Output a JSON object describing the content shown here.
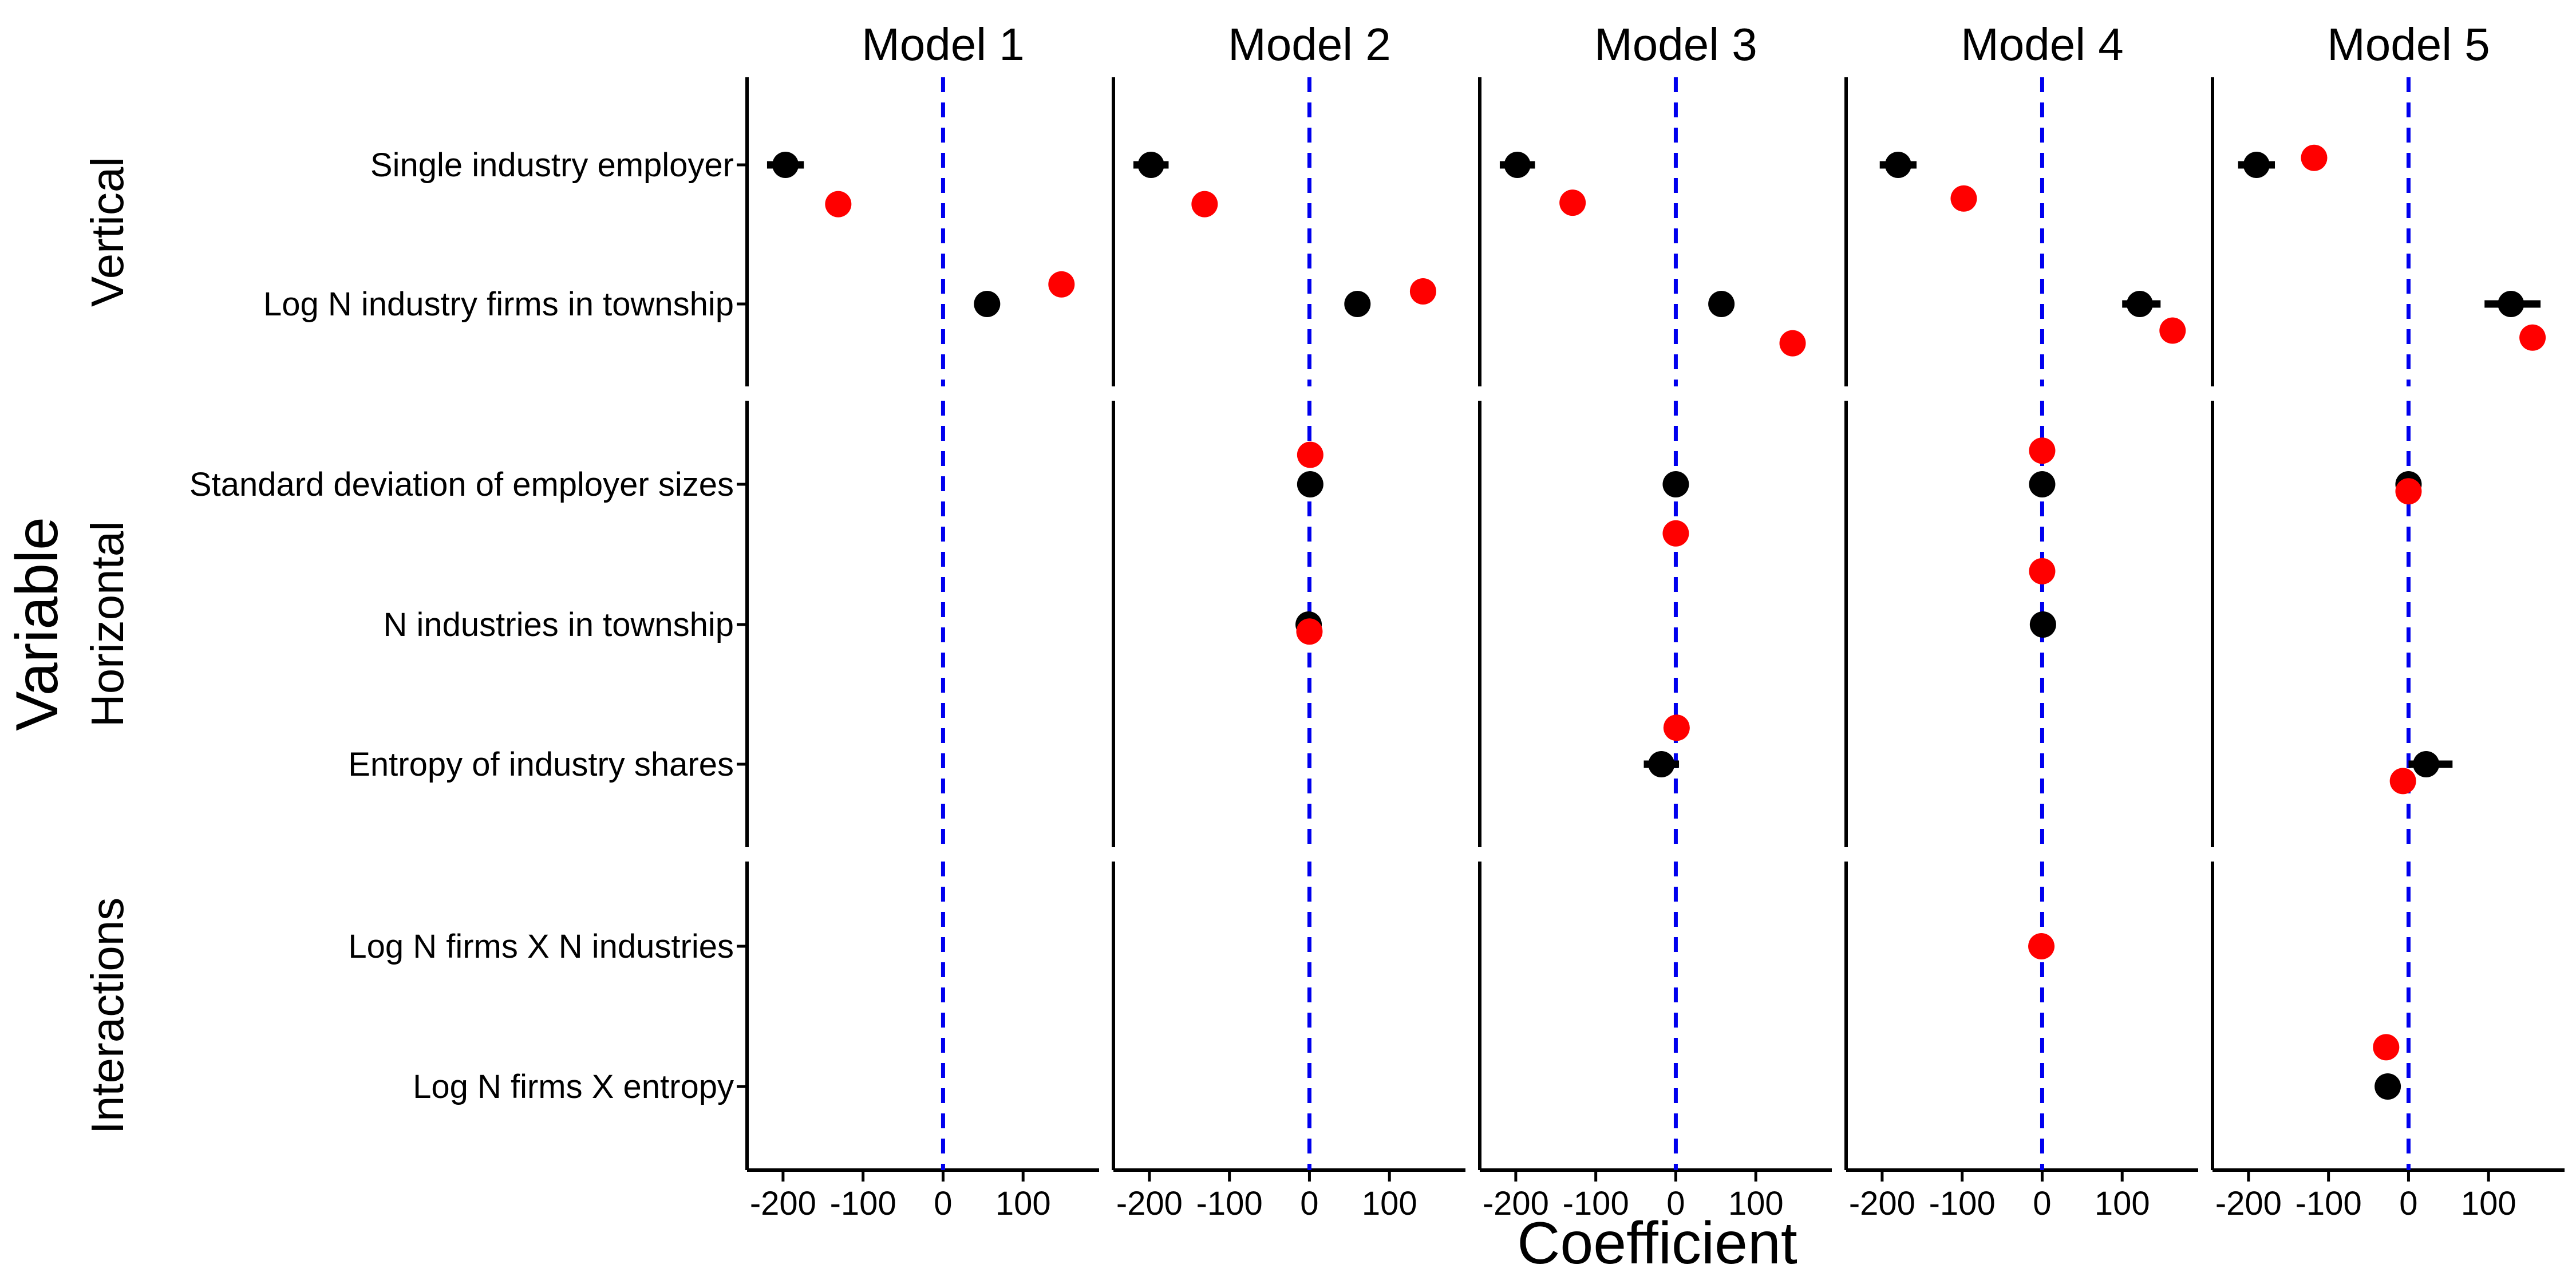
{
  "chart_data": {
    "type": "scatter",
    "title": "",
    "xlabel": "Coefficient",
    "ylabel": "Variable",
    "xlim": [
      -245,
      195
    ],
    "xticks": [
      -200,
      -100,
      0,
      100
    ],
    "xtick_labels": [
      "-200",
      "-100",
      "0",
      "100"
    ],
    "reference_line_x": 0,
    "reference_line_color": "#0000EE",
    "series_colors": {
      "black": "#000000",
      "red": "#FF0000"
    },
    "models": [
      "Model 1",
      "Model 2",
      "Model 3",
      "Model 4",
      "Model 5"
    ],
    "groups": [
      {
        "name": "Vertical",
        "variables": [
          "Single industry employer",
          "Log N industry firms in township"
        ]
      },
      {
        "name": "Horizontal",
        "variables": [
          "Standard deviation of employer sizes",
          "N industries in township",
          "Entropy of industry shares"
        ]
      },
      {
        "name": "Interactions",
        "variables": [
          "Log N firms X N industries",
          "Log N firms X entropy"
        ]
      }
    ],
    "points": [
      {
        "model": 0,
        "group": 0,
        "row": 0,
        "series": "black",
        "estimate": -197,
        "offset": 0,
        "lo": -220,
        "hi": -174
      },
      {
        "model": 0,
        "group": 0,
        "row": 0,
        "series": "red",
        "estimate": -131,
        "offset": 0.28,
        "lo": -145,
        "hi": -117
      },
      {
        "model": 0,
        "group": 0,
        "row": 1,
        "series": "black",
        "estimate": 55,
        "offset": 0,
        "lo": 50,
        "hi": 60
      },
      {
        "model": 0,
        "group": 0,
        "row": 1,
        "series": "red",
        "estimate": 148,
        "offset": -0.14,
        "lo": 143,
        "hi": 153
      },
      {
        "model": 1,
        "group": 0,
        "row": 0,
        "series": "black",
        "estimate": -198,
        "offset": 0,
        "lo": -220,
        "hi": -176
      },
      {
        "model": 1,
        "group": 0,
        "row": 0,
        "series": "red",
        "estimate": -131,
        "offset": 0.28,
        "lo": -145,
        "hi": -117
      },
      {
        "model": 1,
        "group": 0,
        "row": 1,
        "series": "black",
        "estimate": 60,
        "offset": 0,
        "lo": 55,
        "hi": 65
      },
      {
        "model": 1,
        "group": 0,
        "row": 1,
        "series": "red",
        "estimate": 142,
        "offset": -0.09,
        "lo": 137,
        "hi": 147
      },
      {
        "model": 1,
        "group": 1,
        "row": 0,
        "series": "black",
        "estimate": 1,
        "offset": 0,
        "lo": -3,
        "hi": 5
      },
      {
        "model": 1,
        "group": 1,
        "row": 0,
        "series": "red",
        "estimate": 1,
        "offset": -0.21,
        "lo": -3,
        "hi": 5
      },
      {
        "model": 1,
        "group": 1,
        "row": 1,
        "series": "black",
        "estimate": -1,
        "offset": 0,
        "lo": -5,
        "hi": 3
      },
      {
        "model": 1,
        "group": 1,
        "row": 1,
        "series": "red",
        "estimate": 0,
        "offset": 0.05,
        "lo": -4,
        "hi": 4
      },
      {
        "model": 2,
        "group": 0,
        "row": 0,
        "series": "black",
        "estimate": -198,
        "offset": 0,
        "lo": -220,
        "hi": -176
      },
      {
        "model": 2,
        "group": 0,
        "row": 0,
        "series": "red",
        "estimate": -129,
        "offset": 0.27,
        "lo": -143,
        "hi": -115
      },
      {
        "model": 2,
        "group": 0,
        "row": 1,
        "series": "black",
        "estimate": 57,
        "offset": 0,
        "lo": 52,
        "hi": 62
      },
      {
        "model": 2,
        "group": 0,
        "row": 1,
        "series": "red",
        "estimate": 146,
        "offset": 0.28,
        "lo": 141,
        "hi": 151
      },
      {
        "model": 2,
        "group": 1,
        "row": 0,
        "series": "black",
        "estimate": 0,
        "offset": 0,
        "lo": -4,
        "hi": 4
      },
      {
        "model": 2,
        "group": 1,
        "row": 0,
        "series": "red",
        "estimate": 0,
        "offset": 0.35,
        "lo": -4,
        "hi": 4
      },
      {
        "model": 2,
        "group": 1,
        "row": 2,
        "series": "black",
        "estimate": -18,
        "offset": 0,
        "lo": -40,
        "hi": 4
      },
      {
        "model": 2,
        "group": 1,
        "row": 2,
        "series": "red",
        "estimate": 1,
        "offset": -0.26,
        "lo": -8,
        "hi": 10
      },
      {
        "model": 3,
        "group": 0,
        "row": 0,
        "series": "black",
        "estimate": -180,
        "offset": 0,
        "lo": -203,
        "hi": -157
      },
      {
        "model": 3,
        "group": 0,
        "row": 0,
        "series": "red",
        "estimate": -98,
        "offset": 0.24,
        "lo": -112,
        "hi": -84
      },
      {
        "model": 3,
        "group": 0,
        "row": 1,
        "series": "black",
        "estimate": 122,
        "offset": 0,
        "lo": 100,
        "hi": 148
      },
      {
        "model": 3,
        "group": 0,
        "row": 1,
        "series": "red",
        "estimate": 163,
        "offset": 0.19,
        "lo": 158,
        "hi": 168
      },
      {
        "model": 3,
        "group": 1,
        "row": 0,
        "series": "black",
        "estimate": 0,
        "offset": 0,
        "lo": -4,
        "hi": 4
      },
      {
        "model": 3,
        "group": 1,
        "row": 0,
        "series": "red",
        "estimate": 0,
        "offset": -0.24,
        "lo": -4,
        "hi": 4
      },
      {
        "model": 3,
        "group": 1,
        "row": 1,
        "series": "black",
        "estimate": 1,
        "offset": 0,
        "lo": -3,
        "hi": 5
      },
      {
        "model": 3,
        "group": 1,
        "row": 1,
        "series": "red",
        "estimate": 0,
        "offset": -0.38,
        "lo": -4,
        "hi": 4
      },
      {
        "model": 3,
        "group": 2,
        "row": 0,
        "series": "red",
        "estimate": -1,
        "offset": 0,
        "lo": -5,
        "hi": 3
      },
      {
        "model": 4,
        "group": 0,
        "row": 0,
        "series": "black",
        "estimate": -190,
        "offset": 0,
        "lo": -213,
        "hi": -167
      },
      {
        "model": 4,
        "group": 0,
        "row": 0,
        "series": "red",
        "estimate": -118,
        "offset": -0.05,
        "lo": -132,
        "hi": -104
      },
      {
        "model": 4,
        "group": 0,
        "row": 1,
        "series": "black",
        "estimate": 128,
        "offset": 0,
        "lo": 95,
        "hi": 165
      },
      {
        "model": 4,
        "group": 0,
        "row": 1,
        "series": "red",
        "estimate": 155,
        "offset": 0.24,
        "lo": 150,
        "hi": 160
      },
      {
        "model": 4,
        "group": 1,
        "row": 0,
        "series": "black",
        "estimate": 0,
        "offset": 0,
        "lo": -4,
        "hi": 4
      },
      {
        "model": 4,
        "group": 1,
        "row": 0,
        "series": "red",
        "estimate": 0,
        "offset": 0.05,
        "lo": -4,
        "hi": 4
      },
      {
        "model": 4,
        "group": 1,
        "row": 2,
        "series": "black",
        "estimate": 22,
        "offset": 0,
        "lo": 0,
        "hi": 55
      },
      {
        "model": 4,
        "group": 1,
        "row": 2,
        "series": "red",
        "estimate": -7,
        "offset": 0.12,
        "lo": -14,
        "hi": 0
      },
      {
        "model": 4,
        "group": 2,
        "row": 1,
        "series": "black",
        "estimate": -26,
        "offset": 0,
        "lo": -31,
        "hi": -21
      },
      {
        "model": 4,
        "group": 2,
        "row": 1,
        "series": "red",
        "estimate": -28,
        "offset": -0.28,
        "lo": -42,
        "hi": -14
      }
    ]
  }
}
